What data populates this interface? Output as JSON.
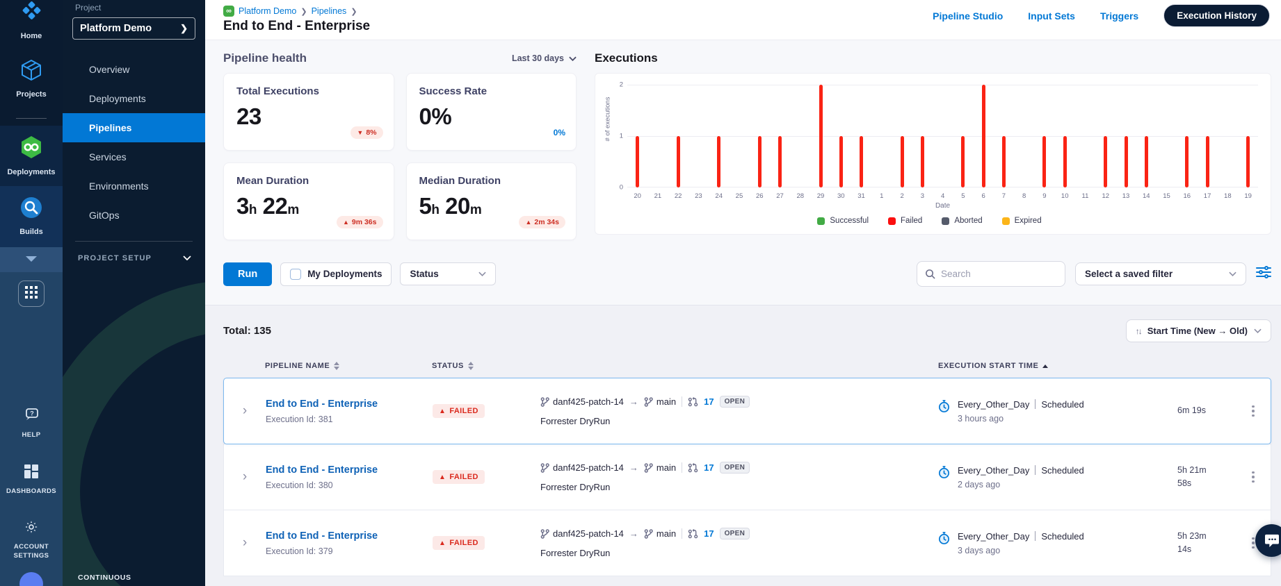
{
  "rail": {
    "home": "Home",
    "projects": "Projects",
    "deployments": "Deployments",
    "builds": "Builds",
    "help": "HELP",
    "dashboards": "DASHBOARDS",
    "account_settings": "ACCOUNT SETTINGS"
  },
  "sidebar": {
    "project_label": "Project",
    "project_name": "Platform Demo",
    "project_caret": "❯",
    "nav": [
      "Overview",
      "Deployments",
      "Pipelines",
      "Services",
      "Environments",
      "GitOps"
    ],
    "project_setup": "PROJECT SETUP",
    "footer": "CONTINUOUS"
  },
  "header": {
    "breadcrumb": [
      "Platform Demo",
      "Pipelines"
    ],
    "crumb_sep": "❯",
    "title": "End to End - Enterprise",
    "tabs": [
      "Pipeline Studio",
      "Input Sets",
      "Triggers",
      "Execution History"
    ]
  },
  "health": {
    "title": "Pipeline health",
    "range": "Last 30 days",
    "cards": [
      {
        "label": "Total Executions",
        "value": "23",
        "delta_arrow": "▼",
        "delta": "8%"
      },
      {
        "label": "Success Rate",
        "value": "0%",
        "aside": "0%"
      },
      {
        "label": "Mean Duration",
        "value": "3h 22m",
        "delta_arrow": "▲",
        "delta": "9m 36s"
      },
      {
        "label": "Median Duration",
        "value": "5h 20m",
        "delta_arrow": "▲",
        "delta": "2m 34s"
      }
    ]
  },
  "chart_data": {
    "type": "bar",
    "title": "Executions",
    "categories": [
      "20",
      "21",
      "22",
      "23",
      "24",
      "25",
      "26",
      "27",
      "28",
      "29",
      "30",
      "31",
      "1",
      "2",
      "3",
      "4",
      "5",
      "6",
      "7",
      "8",
      "9",
      "10",
      "11",
      "12",
      "13",
      "14",
      "15",
      "16",
      "17",
      "18",
      "19"
    ],
    "values": [
      1,
      0,
      1,
      0,
      1,
      0,
      1,
      1,
      0,
      2,
      1,
      1,
      0,
      1,
      1,
      0,
      1,
      2,
      1,
      0,
      1,
      1,
      0,
      1,
      1,
      1,
      0,
      1,
      1,
      0,
      1
    ],
    "series_status": "Failed",
    "xlabel": "Date",
    "ylabel": "# of executions",
    "ylim": [
      0,
      2
    ],
    "yticks": [
      0,
      1,
      2
    ],
    "grid": true,
    "bar_color": "#fa2314",
    "legend_position": "bottom",
    "legend": [
      {
        "label": "Successful",
        "color": "#42ab45"
      },
      {
        "label": "Failed",
        "color": "#fb0f0f"
      },
      {
        "label": "Aborted",
        "color": "#555b6b"
      },
      {
        "label": "Expired",
        "color": "#fcb519"
      }
    ]
  },
  "filters": {
    "run": "Run",
    "my_deployments": "My Deployments",
    "status": "Status",
    "search_placeholder": "Search",
    "saved_filter": "Select a saved filter"
  },
  "list": {
    "total": "Total: 135",
    "sort_icon": "↑↓",
    "sort": "Start Time (New → Old)",
    "branch_arrow": "→",
    "columns": {
      "name": "PIPELINE NAME",
      "status": "STATUS",
      "start": "EXECUTION START TIME"
    },
    "rows": [
      {
        "name": "End to End - Enterprise",
        "id": "Execution Id: 381",
        "status": "FAILED",
        "branch": "danf425-patch-14",
        "target": "main",
        "pr": "17",
        "pr_state": "OPEN",
        "trigger": "Forrester DryRun",
        "schedule": "Every_Other_Day",
        "schedule_type": "Scheduled",
        "when": "3 hours ago",
        "duration": "6m 19s"
      },
      {
        "name": "End to End - Enterprise",
        "id": "Execution Id: 380",
        "status": "FAILED",
        "branch": "danf425-patch-14",
        "target": "main",
        "pr": "17",
        "pr_state": "OPEN",
        "trigger": "Forrester DryRun",
        "schedule": "Every_Other_Day",
        "schedule_type": "Scheduled",
        "when": "2 days ago",
        "duration": "5h 21m 58s"
      },
      {
        "name": "End to End - Enterprise",
        "id": "Execution Id: 379",
        "status": "FAILED",
        "branch": "danf425-patch-14",
        "target": "main",
        "pr": "17",
        "pr_state": "OPEN",
        "trigger": "Forrester DryRun",
        "schedule": "Every_Other_Day",
        "schedule_type": "Scheduled",
        "when": "3 days ago",
        "duration": "5h 23m 14s"
      }
    ]
  }
}
